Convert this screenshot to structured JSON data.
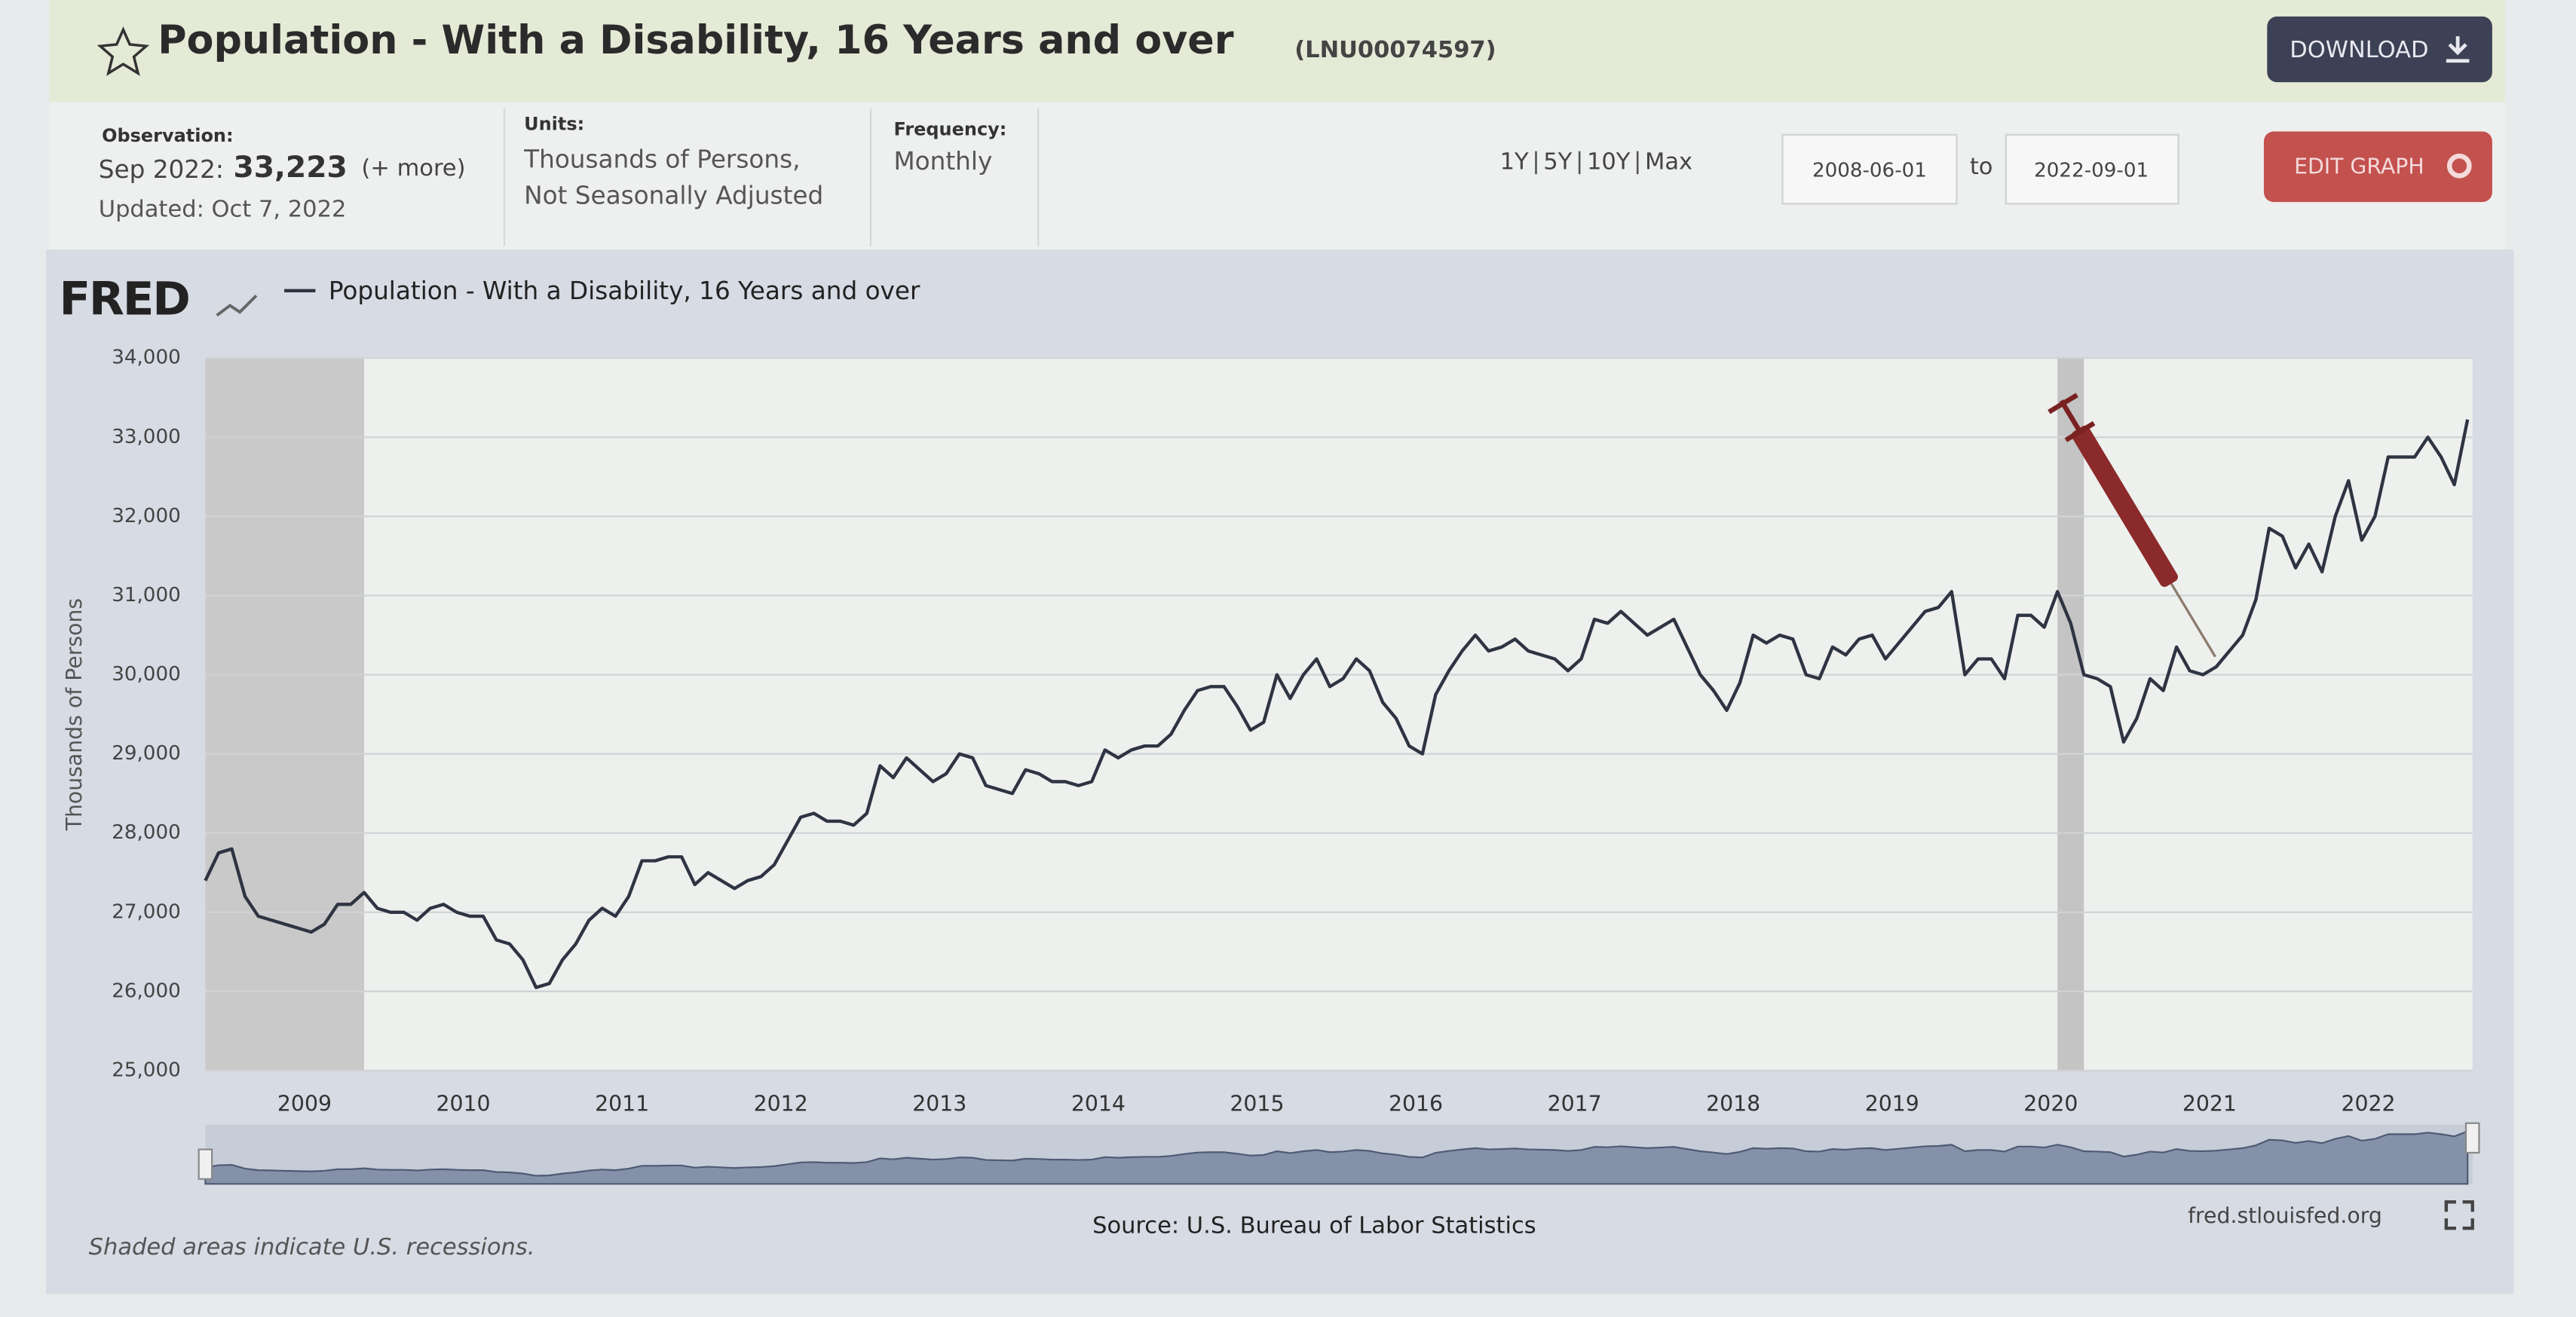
{
  "header": {
    "title": "Population - With a Disability, 16 Years and over",
    "series_id": "(LNU00074597)",
    "download": "DOWNLOAD",
    "observation": {
      "label": "Observation:",
      "date": "Sep 2022:",
      "value": "33,223",
      "more": "(+ more)",
      "updated": "Updated: Oct 7, 2022"
    },
    "units": {
      "label": "Units:",
      "line1": "Thousands of Persons,",
      "line2": "Not Seasonally Adjusted"
    },
    "frequency": {
      "label": "Frequency:",
      "value": "Monthly"
    },
    "ranges": [
      "1Y",
      "5Y",
      "10Y",
      "Max"
    ],
    "date_start": "2008-06-01",
    "date_to": "to",
    "date_end": "2022-09-01",
    "edit": "EDIT GRAPH"
  },
  "chart_data": {
    "type": "line",
    "logo": "FRED",
    "ylabel": "Thousands of Persons",
    "categories": [
      null,
      null,
      null,
      null,
      null,
      null,
      null,
      "2009",
      null,
      null,
      null,
      null,
      null,
      null,
      null,
      null,
      null,
      null,
      null,
      "2010",
      null,
      null,
      null,
      null,
      null,
      null,
      null,
      null,
      null,
      null,
      null,
      "2011",
      null,
      null,
      null,
      null,
      null,
      null,
      null,
      null,
      null,
      null,
      null,
      "2012",
      null,
      null,
      null,
      null,
      null,
      null,
      null,
      null,
      null,
      null,
      null,
      "2013",
      null,
      null,
      null,
      null,
      null,
      null,
      null,
      null,
      null,
      null,
      null,
      "2014",
      null,
      null,
      null,
      null,
      null,
      null,
      null,
      null,
      null,
      null,
      null,
      "2015",
      null,
      null,
      null,
      null,
      null,
      null,
      null,
      null,
      null,
      null,
      null,
      "2016",
      null,
      null,
      null,
      null,
      null,
      null,
      null,
      null,
      null,
      null,
      null,
      "2017",
      null,
      null,
      null,
      null,
      null,
      null,
      null,
      null,
      null,
      null,
      null,
      "2018",
      null,
      null,
      null,
      null,
      null,
      null,
      null,
      null,
      null,
      null,
      null,
      "2019",
      null,
      null,
      null,
      null,
      null,
      null,
      null,
      null,
      null,
      null,
      null,
      "2020",
      null,
      null,
      null,
      null,
      null,
      null,
      null,
      null,
      null,
      null,
      null,
      "2021",
      null,
      null,
      null,
      null,
      null,
      null,
      null,
      null,
      null,
      null,
      null,
      "2022",
      null,
      null,
      null,
      null,
      null,
      null,
      null,
      null
    ],
    "series": [
      {
        "name": "Population - With a Disability, 16 Years and over",
        "color": "#2f3442",
        "values": [
          27400,
          27750,
          27800,
          27200,
          26950,
          26900,
          26850,
          26800,
          26750,
          26850,
          27100,
          27100,
          27250,
          27050,
          27000,
          27000,
          26900,
          27050,
          27100,
          27000,
          26950,
          26950,
          26650,
          26600,
          26400,
          26050,
          26100,
          26400,
          26600,
          26900,
          27050,
          26950,
          27200,
          27650,
          27650,
          27700,
          27700,
          27350,
          27500,
          27400,
          27300,
          27400,
          27450,
          27600,
          27900,
          28200,
          28250,
          28150,
          28150,
          28100,
          28250,
          28850,
          28700,
          28950,
          28800,
          28650,
          28750,
          29000,
          28950,
          28600,
          28550,
          28500,
          28800,
          28750,
          28650,
          28650,
          28600,
          28650,
          29050,
          28950,
          29050,
          29100,
          29100,
          29250,
          29550,
          29800,
          29850,
          29850,
          29600,
          29300,
          29400,
          30000,
          29700,
          30000,
          30200,
          29850,
          29950,
          30200,
          30050,
          29650,
          29450,
          29100,
          29000,
          29750,
          30050,
          30300,
          30500,
          30300,
          30350,
          30450,
          30300,
          30250,
          30200,
          30050,
          30200,
          30700,
          30650,
          30800,
          30650,
          30500,
          30600,
          30700,
          30350,
          30000,
          29800,
          29550,
          29900,
          30500,
          30400,
          30500,
          30450,
          30000,
          29950,
          30350,
          30250,
          30450,
          30500,
          30200,
          30400,
          30600,
          30800,
          30850,
          31050,
          30000,
          30200,
          30200,
          29950,
          30750,
          30750,
          30600,
          31050,
          30650,
          30000,
          29950,
          29850,
          29150,
          29450,
          29950,
          29800,
          30350,
          30050,
          30000,
          30100,
          30300,
          30500,
          30950,
          31850,
          31750,
          31350,
          31650,
          31300,
          32000,
          32450,
          31700,
          32000,
          32750,
          32750,
          32750,
          33000,
          32750,
          32400,
          33223
        ]
      }
    ],
    "recessions": [
      [
        0,
        12
      ],
      [
        140,
        142
      ]
    ],
    "ylim": [
      25000,
      34000
    ],
    "yticks": [
      {
        "value": 25000,
        "label": "25,000"
      },
      {
        "value": 26000,
        "label": "26,000"
      },
      {
        "value": 27000,
        "label": "27,000"
      },
      {
        "value": 28000,
        "label": "28,000"
      },
      {
        "value": 29000,
        "label": "29,000"
      },
      {
        "value": 30000,
        "label": "30,000"
      },
      {
        "value": 31000,
        "label": "31,000"
      },
      {
        "value": 32000,
        "label": "32,000"
      },
      {
        "value": 33000,
        "label": "33,000"
      },
      {
        "value": 34000,
        "label": "34,000"
      }
    ],
    "grid": true,
    "note": "Shaded areas indicate U.S. recessions.",
    "source": "Source: U.S. Bureau of Labor Statistics",
    "site": "fred.stlouisfed.org"
  }
}
